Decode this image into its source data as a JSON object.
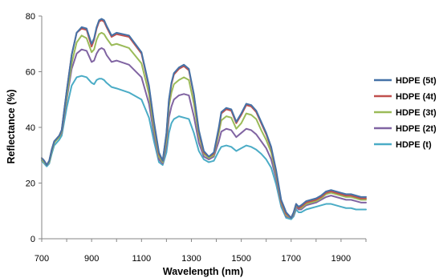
{
  "chart_data": {
    "type": "line",
    "title": "",
    "xlabel": "Wavelength (nm)",
    "ylabel": "Reflectance (%)",
    "xlim": [
      700,
      2000
    ],
    "ylim": [
      0,
      80
    ],
    "xticks": [
      700,
      900,
      1100,
      1300,
      1500,
      1700,
      1900
    ],
    "yticks": [
      0,
      20,
      40,
      60,
      80
    ],
    "grid": false,
    "legend_position": "right",
    "x": [
      700,
      710,
      720,
      730,
      740,
      750,
      760,
      770,
      780,
      790,
      800,
      820,
      840,
      860,
      880,
      900,
      910,
      920,
      930,
      940,
      950,
      960,
      980,
      1000,
      1050,
      1100,
      1130,
      1150,
      1170,
      1185,
      1200,
      1210,
      1220,
      1230,
      1250,
      1270,
      1290,
      1310,
      1330,
      1350,
      1370,
      1390,
      1410,
      1420,
      1440,
      1460,
      1480,
      1500,
      1520,
      1540,
      1560,
      1580,
      1600,
      1620,
      1640,
      1660,
      1680,
      1700,
      1710,
      1720,
      1730,
      1740,
      1760,
      1780,
      1800,
      1820,
      1840,
      1860,
      1880,
      1900,
      1920,
      1940,
      1960,
      1980,
      2000
    ],
    "series": [
      {
        "name": "HDPE (5t)",
        "color": "#4572A7",
        "values": [
          29,
          28,
          26.5,
          28,
          32,
          35,
          36,
          37,
          39,
          46,
          53,
          66,
          74,
          76,
          75.5,
          70,
          72,
          76,
          78.5,
          79,
          78.5,
          76.5,
          73,
          74,
          73,
          67,
          55,
          42,
          31,
          28,
          38,
          50,
          56,
          59.5,
          61.5,
          62.5,
          61,
          52,
          39,
          31.5,
          29.5,
          31,
          40,
          45.5,
          47,
          46.5,
          42,
          45,
          48.5,
          48,
          46,
          42,
          38,
          33,
          24.5,
          14,
          9.5,
          7.5,
          9.5,
          12.5,
          11.5,
          12,
          13.5,
          14,
          14.5,
          15.5,
          17,
          17.5,
          17,
          16.5,
          16,
          16,
          15.5,
          15,
          15
        ]
      },
      {
        "name": "HDPE (4t)",
        "color": "#C0504D",
        "values": [
          29,
          28,
          26.5,
          28,
          32,
          35,
          36,
          37,
          39,
          46,
          53,
          66,
          74,
          75.5,
          75,
          69,
          71.5,
          75.5,
          78,
          78.5,
          78,
          76,
          72.5,
          73.5,
          72.5,
          66.5,
          54.5,
          41.5,
          30.5,
          28,
          37.5,
          49.5,
          55.5,
          59,
          61,
          62,
          60.5,
          51.5,
          38.5,
          31,
          29.5,
          30.5,
          39.5,
          45,
          46.5,
          46,
          41.5,
          44.5,
          48,
          47.5,
          45.5,
          41.5,
          37.5,
          32.5,
          24,
          13.5,
          9,
          7.5,
          9.5,
          12.5,
          11,
          11.5,
          13,
          13.5,
          14,
          15,
          16.5,
          17,
          16.5,
          16,
          15.5,
          15.5,
          15,
          14.5,
          14.5
        ]
      },
      {
        "name": "HDPE (3t)",
        "color": "#9BBB59",
        "values": [
          28.5,
          27.5,
          26.5,
          27.5,
          31.5,
          34.5,
          35.5,
          36.5,
          38.5,
          45,
          51,
          63,
          70.5,
          73,
          72,
          67,
          68,
          71.5,
          73.5,
          74,
          73.5,
          72,
          69.5,
          70,
          68.5,
          63,
          52,
          39.5,
          29.5,
          27.5,
          35.5,
          47.5,
          52.5,
          55.5,
          57,
          58,
          57,
          48.5,
          37,
          30.5,
          29,
          30,
          38,
          42.5,
          44,
          43.5,
          39.5,
          41.5,
          45,
          44.5,
          43,
          39,
          35.5,
          31,
          23,
          13,
          8.5,
          7.5,
          9,
          12,
          11,
          11,
          12.5,
          13,
          13.5,
          14.5,
          16,
          16.5,
          16,
          15.5,
          15,
          15,
          14.5,
          14,
          14
        ]
      },
      {
        "name": "HDPE (2t)",
        "color": "#8064A2",
        "values": [
          28.5,
          27.5,
          26.5,
          27.5,
          31.5,
          34.5,
          35.5,
          36.5,
          38,
          44,
          50,
          61,
          66.5,
          68,
          67.5,
          63.5,
          64,
          66.5,
          68,
          68.5,
          68,
          66,
          63.5,
          64,
          62.5,
          58,
          48.5,
          37.5,
          28.5,
          27,
          33.5,
          43.5,
          47.5,
          50,
          51.5,
          52,
          51.5,
          44,
          34.5,
          29.5,
          28.5,
          29.5,
          35,
          38.5,
          39.5,
          39,
          36.5,
          38,
          39.5,
          39,
          37.5,
          35,
          32.5,
          28.5,
          21.5,
          12.5,
          8,
          7.5,
          8.5,
          11.5,
          10.5,
          10.5,
          12,
          12.5,
          13,
          14,
          15,
          15.5,
          15,
          14.5,
          14,
          14,
          13.5,
          13,
          13
        ]
      },
      {
        "name": "HDPE (t)",
        "color": "#4BACC6",
        "values": [
          28,
          27,
          26,
          27,
          30.5,
          33.5,
          34.5,
          35.5,
          37,
          42,
          47,
          55,
          58,
          58.5,
          58,
          56,
          55.5,
          57,
          57.5,
          57.5,
          57,
          56,
          54.5,
          54,
          52.5,
          50,
          43.5,
          35,
          27.5,
          26.5,
          31,
          38,
          41.5,
          43,
          44,
          43.5,
          43,
          38,
          31.5,
          28.5,
          27.5,
          28,
          31.5,
          33,
          33.5,
          33,
          31.5,
          32.5,
          33.5,
          33,
          32,
          30.5,
          28.5,
          25.5,
          19.5,
          11.5,
          7.5,
          7,
          8,
          10.5,
          9.5,
          9.5,
          10.5,
          11,
          11.5,
          12,
          12.5,
          12.5,
          12,
          11.5,
          11,
          11,
          10.5,
          10.5,
          10.5
        ]
      }
    ]
  }
}
